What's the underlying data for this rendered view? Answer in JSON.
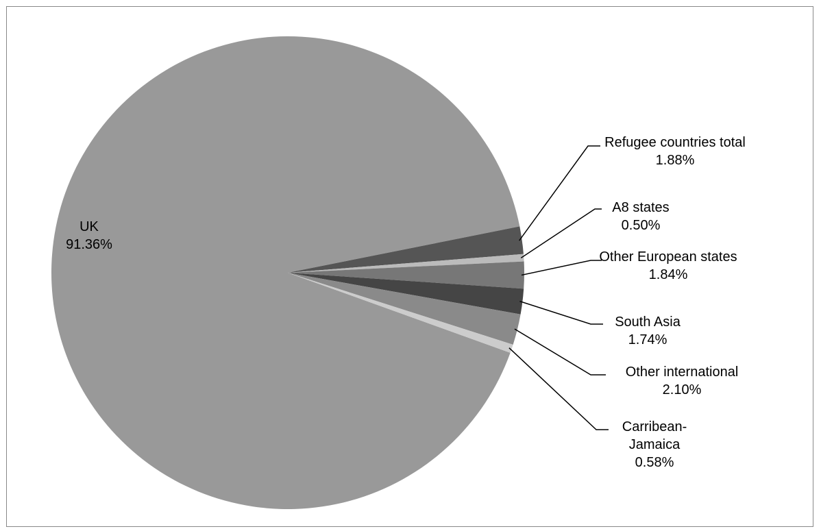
{
  "chart_data": {
    "type": "pie",
    "categories": [
      "UK",
      "Refugee countries total",
      "A8 states",
      "Other European states",
      "South Asia",
      "Other international",
      "Carribean-Jamaica"
    ],
    "values": [
      91.36,
      1.88,
      0.5,
      1.84,
      1.74,
      2.1,
      0.58
    ],
    "value_labels": [
      "91.36%",
      "1.88%",
      "0.50%",
      "1.84%",
      "1.74%",
      "2.10%",
      "0.58%"
    ],
    "colors": [
      "#999999",
      "#555555",
      "#bbbbbb",
      "#777777",
      "#454545",
      "#8a8a8a",
      "#cccccc"
    ]
  }
}
